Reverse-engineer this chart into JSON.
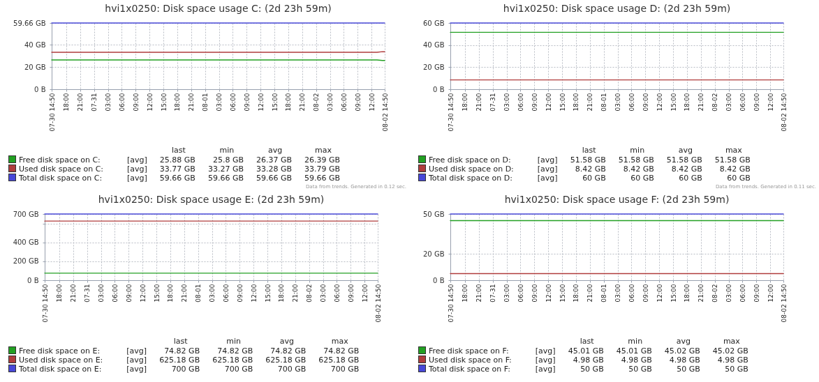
{
  "chart_data": [
    {
      "type": "line",
      "title": "hvi1x0250: Disk space usage C: (2d 23h 59m)",
      "x": [
        "--07-30T14:50",
        "--08-02T13:10",
        "--08-02T14:20",
        "--08-02T14:50"
      ],
      "xlim": [
        "--07-30T14:50",
        "--08-02T14:50"
      ],
      "xticks": [
        {
          "value": "--07-30T14:50",
          "label": "07-30 14:50"
        },
        {
          "value": "--07-30T18:00",
          "label": "18:00"
        },
        {
          "value": "--07-30T21:00",
          "label": "21:00"
        },
        {
          "value": "--07-31T00:00",
          "label": "07-31"
        },
        {
          "value": "--07-31T03:00",
          "label": "03:00"
        },
        {
          "value": "--07-31T06:00",
          "label": "06:00"
        },
        {
          "value": "--07-31T09:00",
          "label": "09:00"
        },
        {
          "value": "--07-31T12:00",
          "label": "12:00"
        },
        {
          "value": "--07-31T15:00",
          "label": "15:00"
        },
        {
          "value": "--07-31T18:00",
          "label": "18:00"
        },
        {
          "value": "--07-31T21:00",
          "label": "21:00"
        },
        {
          "value": "--08-01T00:00",
          "label": "08-01"
        },
        {
          "value": "--08-01T03:00",
          "label": "03:00"
        },
        {
          "value": "--08-01T06:00",
          "label": "06:00"
        },
        {
          "value": "--08-01T09:00",
          "label": "09:00"
        },
        {
          "value": "--08-01T12:00",
          "label": "12:00"
        },
        {
          "value": "--08-01T15:00",
          "label": "15:00"
        },
        {
          "value": "--08-01T18:00",
          "label": "18:00"
        },
        {
          "value": "--08-01T21:00",
          "label": "21:00"
        },
        {
          "value": "--08-02T00:00",
          "label": "08-02"
        },
        {
          "value": "--08-02T03:00",
          "label": "03:00"
        },
        {
          "value": "--08-02T06:00",
          "label": "06:00"
        },
        {
          "value": "--08-02T09:00",
          "label": "09:00"
        },
        {
          "value": "--08-02T12:00",
          "label": "12:00"
        },
        {
          "value": "--08-02T14:50",
          "label": "08-02 14:50"
        }
      ],
      "ylim": [
        0,
        59.66
      ],
      "yticks": [
        {
          "value": 0,
          "label": "0 B"
        },
        {
          "value": 20,
          "label": "20 GB"
        },
        {
          "value": 40,
          "label": "40 GB"
        },
        {
          "value": 59.66,
          "label": "59.66 GB"
        }
      ],
      "grid": true,
      "legend": "bottom",
      "series": [
        {
          "name": "Free disk space on C:",
          "color": "#22a022",
          "values": [
            26.4,
            26.4,
            25.9,
            25.9
          ]
        },
        {
          "name": "Used disk space on C:",
          "color": "#b03c3c",
          "values": [
            33.3,
            33.3,
            33.8,
            33.8
          ]
        },
        {
          "name": "Total disk space on C:",
          "color": "#4848d8",
          "x": [
            "--07-30T14:50",
            "--08-02T14:50"
          ],
          "values": [
            59.66,
            59.66
          ]
        }
      ],
      "annotations": [
        "last",
        "min",
        "avg",
        "max",
        "[avg]",
        "25.88 GB",
        "25.8 GB",
        "26.37 GB",
        "26.39 GB",
        "[avg]",
        "33.77 GB",
        "33.27 GB",
        "33.28 GB",
        "33.79 GB",
        "[avg]",
        "59.66 GB",
        "59.66 GB",
        "59.66 GB",
        "59.66 GB",
        "Data from trends. Generated in 0.12 sec."
      ]
    },
    {
      "type": "line",
      "title": "hvi1x0250: Disk space usage D: (2d 23h 59m)",
      "x": [
        "--07-30T14:50",
        "--08-02T14:50"
      ],
      "xlim": [
        "--07-30T14:50",
        "--08-02T14:50"
      ],
      "xticks": [
        {
          "value": "--07-30T14:50",
          "label": "07-30 14:50"
        },
        {
          "value": "--07-30T18:00",
          "label": "18:00"
        },
        {
          "value": "--07-30T21:00",
          "label": "21:00"
        },
        {
          "value": "--07-31T00:00",
          "label": "07-31"
        },
        {
          "value": "--07-31T03:00",
          "label": "03:00"
        },
        {
          "value": "--07-31T06:00",
          "label": "06:00"
        },
        {
          "value": "--07-31T09:00",
          "label": "09:00"
        },
        {
          "value": "--07-31T12:00",
          "label": "12:00"
        },
        {
          "value": "--07-31T15:00",
          "label": "15:00"
        },
        {
          "value": "--07-31T18:00",
          "label": "18:00"
        },
        {
          "value": "--07-31T21:00",
          "label": "21:00"
        },
        {
          "value": "--08-01T00:00",
          "label": "08-01"
        },
        {
          "value": "--08-01T03:00",
          "label": "03:00"
        },
        {
          "value": "--08-01T06:00",
          "label": "06:00"
        },
        {
          "value": "--08-01T09:00",
          "label": "09:00"
        },
        {
          "value": "--08-01T12:00",
          "label": "12:00"
        },
        {
          "value": "--08-01T15:00",
          "label": "15:00"
        },
        {
          "value": "--08-01T18:00",
          "label": "18:00"
        },
        {
          "value": "--08-01T21:00",
          "label": "21:00"
        },
        {
          "value": "--08-02T00:00",
          "label": "08-02"
        },
        {
          "value": "--08-02T03:00",
          "label": "03:00"
        },
        {
          "value": "--08-02T06:00",
          "label": "06:00"
        },
        {
          "value": "--08-02T09:00",
          "label": "09:00"
        },
        {
          "value": "--08-02T12:00",
          "label": "12:00"
        },
        {
          "value": "--08-02T14:50",
          "label": "08-02 14:50"
        }
      ],
      "ylim": [
        0,
        60
      ],
      "yticks": [
        {
          "value": 0,
          "label": "0 B"
        },
        {
          "value": 20,
          "label": "20 GB"
        },
        {
          "value": 40,
          "label": "40 GB"
        },
        {
          "value": 60,
          "label": "60 GB"
        }
      ],
      "grid": true,
      "legend": "bottom",
      "series": [
        {
          "name": "Free disk space on D:",
          "color": "#22a022",
          "values": [
            51.58,
            51.58
          ]
        },
        {
          "name": "Used disk space on D:",
          "color": "#b03c3c",
          "values": [
            8.42,
            8.42
          ]
        },
        {
          "name": "Total disk space on D:",
          "color": "#4848d8",
          "values": [
            60,
            60
          ]
        }
      ],
      "annotations": [
        "last",
        "min",
        "avg",
        "max",
        "[avg]",
        "51.58 GB",
        "51.58 GB",
        "51.58 GB",
        "51.58 GB",
        "[avg]",
        "8.42 GB",
        "8.42 GB",
        "8.42 GB",
        "8.42 GB",
        "[avg]",
        "60 GB",
        "60 GB",
        "60 GB",
        "60 GB",
        "Data from trends. Generated in 0.11 sec."
      ]
    },
    {
      "type": "line",
      "title": "hvi1x0250: Disk space usage E: (2d 23h 59m)",
      "x": [
        "--07-30T14:50",
        "--08-02T14:50"
      ],
      "xlim": [
        "--07-30T14:50",
        "--08-02T14:50"
      ],
      "xticks": [
        {
          "value": "--07-30T14:50",
          "label": "07-30 14:50"
        },
        {
          "value": "--07-30T18:00",
          "label": "18:00"
        },
        {
          "value": "--07-30T21:00",
          "label": "21:00"
        },
        {
          "value": "--07-31T00:00",
          "label": "07-31"
        },
        {
          "value": "--07-31T03:00",
          "label": "03:00"
        },
        {
          "value": "--07-31T06:00",
          "label": "06:00"
        },
        {
          "value": "--07-31T09:00",
          "label": "09:00"
        },
        {
          "value": "--07-31T12:00",
          "label": "12:00"
        },
        {
          "value": "--07-31T15:00",
          "label": "15:00"
        },
        {
          "value": "--07-31T18:00",
          "label": "18:00"
        },
        {
          "value": "--07-31T21:00",
          "label": "21:00"
        },
        {
          "value": "--08-01T00:00",
          "label": "08-01"
        },
        {
          "value": "--08-01T03:00",
          "label": "03:00"
        },
        {
          "value": "--08-01T06:00",
          "label": "06:00"
        },
        {
          "value": "--08-01T09:00",
          "label": "09:00"
        },
        {
          "value": "--08-01T12:00",
          "label": "12:00"
        },
        {
          "value": "--08-01T15:00",
          "label": "15:00"
        },
        {
          "value": "--08-01T18:00",
          "label": "18:00"
        },
        {
          "value": "--08-01T21:00",
          "label": "21:00"
        },
        {
          "value": "--08-02T00:00",
          "label": "08-02"
        },
        {
          "value": "--08-02T03:00",
          "label": "03:00"
        },
        {
          "value": "--08-02T06:00",
          "label": "06:00"
        },
        {
          "value": "--08-02T09:00",
          "label": "09:00"
        },
        {
          "value": "--08-02T12:00",
          "label": "12:00"
        },
        {
          "value": "--08-02T14:50",
          "label": "08-02 14:50"
        }
      ],
      "ylim": [
        0,
        700
      ],
      "yticks": [
        {
          "value": 0,
          "label": "0 B"
        },
        {
          "value": 200,
          "label": "200 GB"
        },
        {
          "value": 400,
          "label": "400 GB"
        },
        {
          "value": 600,
          "label": null
        },
        {
          "value": 700,
          "label": "700 GB"
        }
      ],
      "grid": true,
      "legend": "bottom",
      "series": [
        {
          "name": "Free disk space on E:",
          "color": "#22a022",
          "values": [
            74.82,
            74.82
          ]
        },
        {
          "name": "Used disk space on E:",
          "color": "#b03c3c",
          "values": [
            625.18,
            625.18
          ]
        },
        {
          "name": "Total disk space on E:",
          "color": "#4848d8",
          "values": [
            700,
            700
          ]
        }
      ],
      "annotations": [
        "last",
        "min",
        "avg",
        "max",
        "[avg]",
        "74.82 GB",
        "74.82 GB",
        "74.82 GB",
        "74.82 GB",
        "[avg]",
        "625.18 GB",
        "625.18 GB",
        "625.18 GB",
        "625.18 GB",
        "[avg]",
        "700 GB",
        "700 GB",
        "700 GB",
        "700 GB"
      ]
    },
    {
      "type": "line",
      "title": "hvi1x0250: Disk space usage F: (2d 23h 59m)",
      "x": [
        "--07-30T14:50",
        "--08-02T14:50"
      ],
      "xlim": [
        "--07-30T14:50",
        "--08-02T14:50"
      ],
      "xticks": [
        {
          "value": "--07-30T14:50",
          "label": "07-30 14:50"
        },
        {
          "value": "--07-30T18:00",
          "label": "18:00"
        },
        {
          "value": "--07-30T21:00",
          "label": "21:00"
        },
        {
          "value": "--07-31T00:00",
          "label": "07-31"
        },
        {
          "value": "--07-31T03:00",
          "label": "03:00"
        },
        {
          "value": "--07-31T06:00",
          "label": "06:00"
        },
        {
          "value": "--07-31T09:00",
          "label": "09:00"
        },
        {
          "value": "--07-31T12:00",
          "label": "12:00"
        },
        {
          "value": "--07-31T15:00",
          "label": "15:00"
        },
        {
          "value": "--07-31T18:00",
          "label": "18:00"
        },
        {
          "value": "--07-31T21:00",
          "label": "21:00"
        },
        {
          "value": "--08-01T00:00",
          "label": "08-01"
        },
        {
          "value": "--08-01T03:00",
          "label": "03:00"
        },
        {
          "value": "--08-01T06:00",
          "label": "06:00"
        },
        {
          "value": "--08-01T09:00",
          "label": "09:00"
        },
        {
          "value": "--08-01T12:00",
          "label": "12:00"
        },
        {
          "value": "--08-01T15:00",
          "label": "15:00"
        },
        {
          "value": "--08-01T18:00",
          "label": "18:00"
        },
        {
          "value": "--08-01T21:00",
          "label": "21:00"
        },
        {
          "value": "--08-02T00:00",
          "label": "08-02"
        },
        {
          "value": "--08-02T03:00",
          "label": "03:00"
        },
        {
          "value": "--08-02T06:00",
          "label": "06:00"
        },
        {
          "value": "--08-02T09:00",
          "label": "09:00"
        },
        {
          "value": "--08-02T12:00",
          "label": "12:00"
        },
        {
          "value": "--08-02T14:50",
          "label": "08-02 14:50"
        }
      ],
      "ylim": [
        0,
        50
      ],
      "yticks": [
        {
          "value": 0,
          "label": "0 B"
        },
        {
          "value": 20,
          "label": "20 GB"
        },
        {
          "value": 50,
          "label": "50 GB"
        }
      ],
      "grid": true,
      "legend": "bottom",
      "series": [
        {
          "name": "Free disk space on F:",
          "color": "#22a022",
          "values": [
            45.01,
            45.01
          ]
        },
        {
          "name": "Used disk space on F:",
          "color": "#b03c3c",
          "values": [
            4.98,
            4.98
          ]
        },
        {
          "name": "Total disk space on F:",
          "color": "#4848d8",
          "values": [
            50,
            50
          ]
        }
      ],
      "annotations": [
        "last",
        "min",
        "avg",
        "max",
        "[avg]",
        "45.01 GB",
        "45.01 GB",
        "45.02 GB",
        "45.02 GB",
        "[avg]",
        "4.98 GB",
        "4.98 GB",
        "4.98 GB",
        "4.98 GB",
        "[avg]",
        "50 GB",
        "50 GB",
        "50 GB",
        "50 GB"
      ]
    }
  ]
}
